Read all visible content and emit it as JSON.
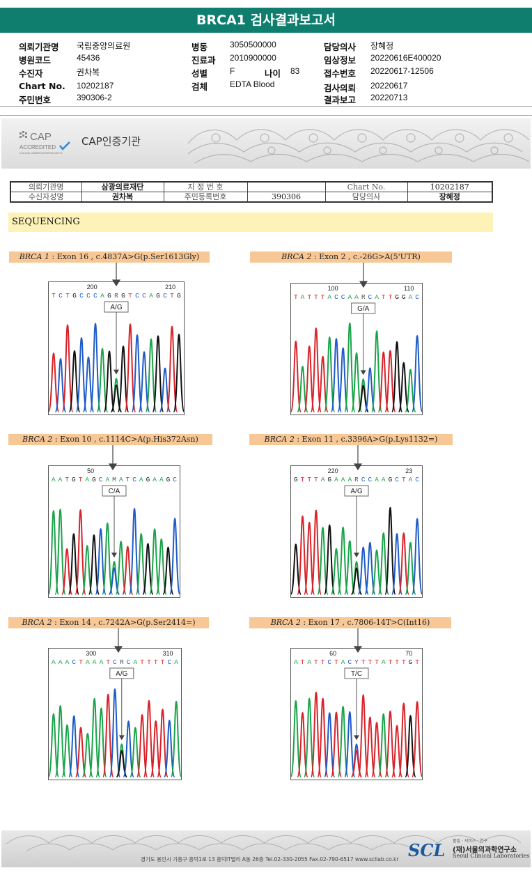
{
  "report_title": "BRCA1 검사결과보고서",
  "patient_info": {
    "institution_label": "의뢰기관명",
    "institution": "국립중앙의료원",
    "hospital_code_label": "병원코드",
    "hospital_code": "45436",
    "recipient_label": "수진자",
    "recipient": "권차복",
    "chart_no_label": "Chart No.",
    "chart_no": "10202187",
    "resident_no_label": "주민번호",
    "resident_no": "390306-2",
    "ward_label": "병동",
    "ward": "3050500000",
    "department_label": "진료과",
    "department": "2010900000",
    "sex_label": "성별",
    "sex": "F",
    "age_label": "나이",
    "age": "83",
    "specimen_label": "검체",
    "specimen": "EDTA Blood",
    "doctor_label": "담당의사",
    "doctor": "장혜정",
    "clinical_info_label": "임상정보",
    "clinical_info": "20220616E400020",
    "receipt_no_label": "접수번호",
    "receipt_no": "20220617-12506",
    "request_date_label": "검사의뢰",
    "request_date": "20220617",
    "report_date_label": "결과보고",
    "report_date": "20220713"
  },
  "cap": {
    "logo_text": "CAP",
    "accredited": "ACCREDITED",
    "college": "COLLEGE of AMERICAN PATHOLOGISTS",
    "label": "CAP인증기관"
  },
  "sub_table": {
    "c1": "의뢰기관명",
    "c2": "삼광의료재단",
    "c3": "지 정 번 호",
    "c4": "",
    "c5": "Chart No.",
    "c6": "10202187",
    "d1": "수신자성명",
    "d2": "권차복",
    "d3": "주민등록번호",
    "d4": "390306",
    "d5": "담당의사",
    "d6": "장혜정"
  },
  "sequencing_label": "SEQUENCING",
  "panels": [
    {
      "gene": "BRCA 1",
      "rest": " : Exon 16 , c.4837A>G(p.Ser1613Gly)",
      "seq": "TCTGCCCAGRGTCCAGCTG",
      "pos1": "200",
      "pos2": "210",
      "call": "A/G"
    },
    {
      "gene": "BRCA 2",
      "rest": " : Exon 2 , c.-26G>A(5'UTR)",
      "seq": "TATTTACCAARCATTGGAC",
      "pos1": "100",
      "pos2": "110",
      "call": "G/A"
    },
    {
      "gene": "BRCA 2",
      "rest": " : Exon 10 , c.1114C>A(p.His372Asn)",
      "seq": "AATGTAGCAMATCAGAAGC",
      "pos1": "50",
      "pos2": "",
      "call": "C/A"
    },
    {
      "gene": "BRCA 2",
      "rest": " : Exon 11 , c.3396A>G(p.Lys1132=)",
      "seq": "GTTTAGAAARCCAAGCTAC",
      "pos1": "220",
      "pos2": "23",
      "call": "A/G"
    },
    {
      "gene": "BRCA 2",
      "rest": " : Exon 14 , c.7242A>G(p.Ser2414=)",
      "seq": "AAACTAAATCRCATTTTCA",
      "pos1": "300",
      "pos2": "310",
      "call": "A/G"
    },
    {
      "gene": "BRCA 2",
      "rest": " : Exon 17 , c.7806-14T>C(Int16)",
      "seq": "ATATTCTACYTTTATTTGT",
      "pos1": "60",
      "pos2": "70",
      "call": "T/C"
    }
  ],
  "footer": {
    "address": "경기도 용인시 기흥구 흥덕1로 13 흥덕IT밸리 A동 26층  Tel.02-330-2055  Fax.02-790-6517  www.scllab.co.kr",
    "logo": "SCL",
    "tagline": "품질 · 서비스 · 연구",
    "name_kr": "(재)서울의과학연구소",
    "name_en": "Seoul Clinical Laboratories"
  },
  "colors": {
    "header_bg": "#0f7e6e",
    "label_bg": "#f7c896",
    "seq_banner_bg": "#fdf3b8",
    "A": "#1aa34a",
    "C": "#1e5bc6",
    "G": "#111111",
    "T": "#d8232a"
  }
}
